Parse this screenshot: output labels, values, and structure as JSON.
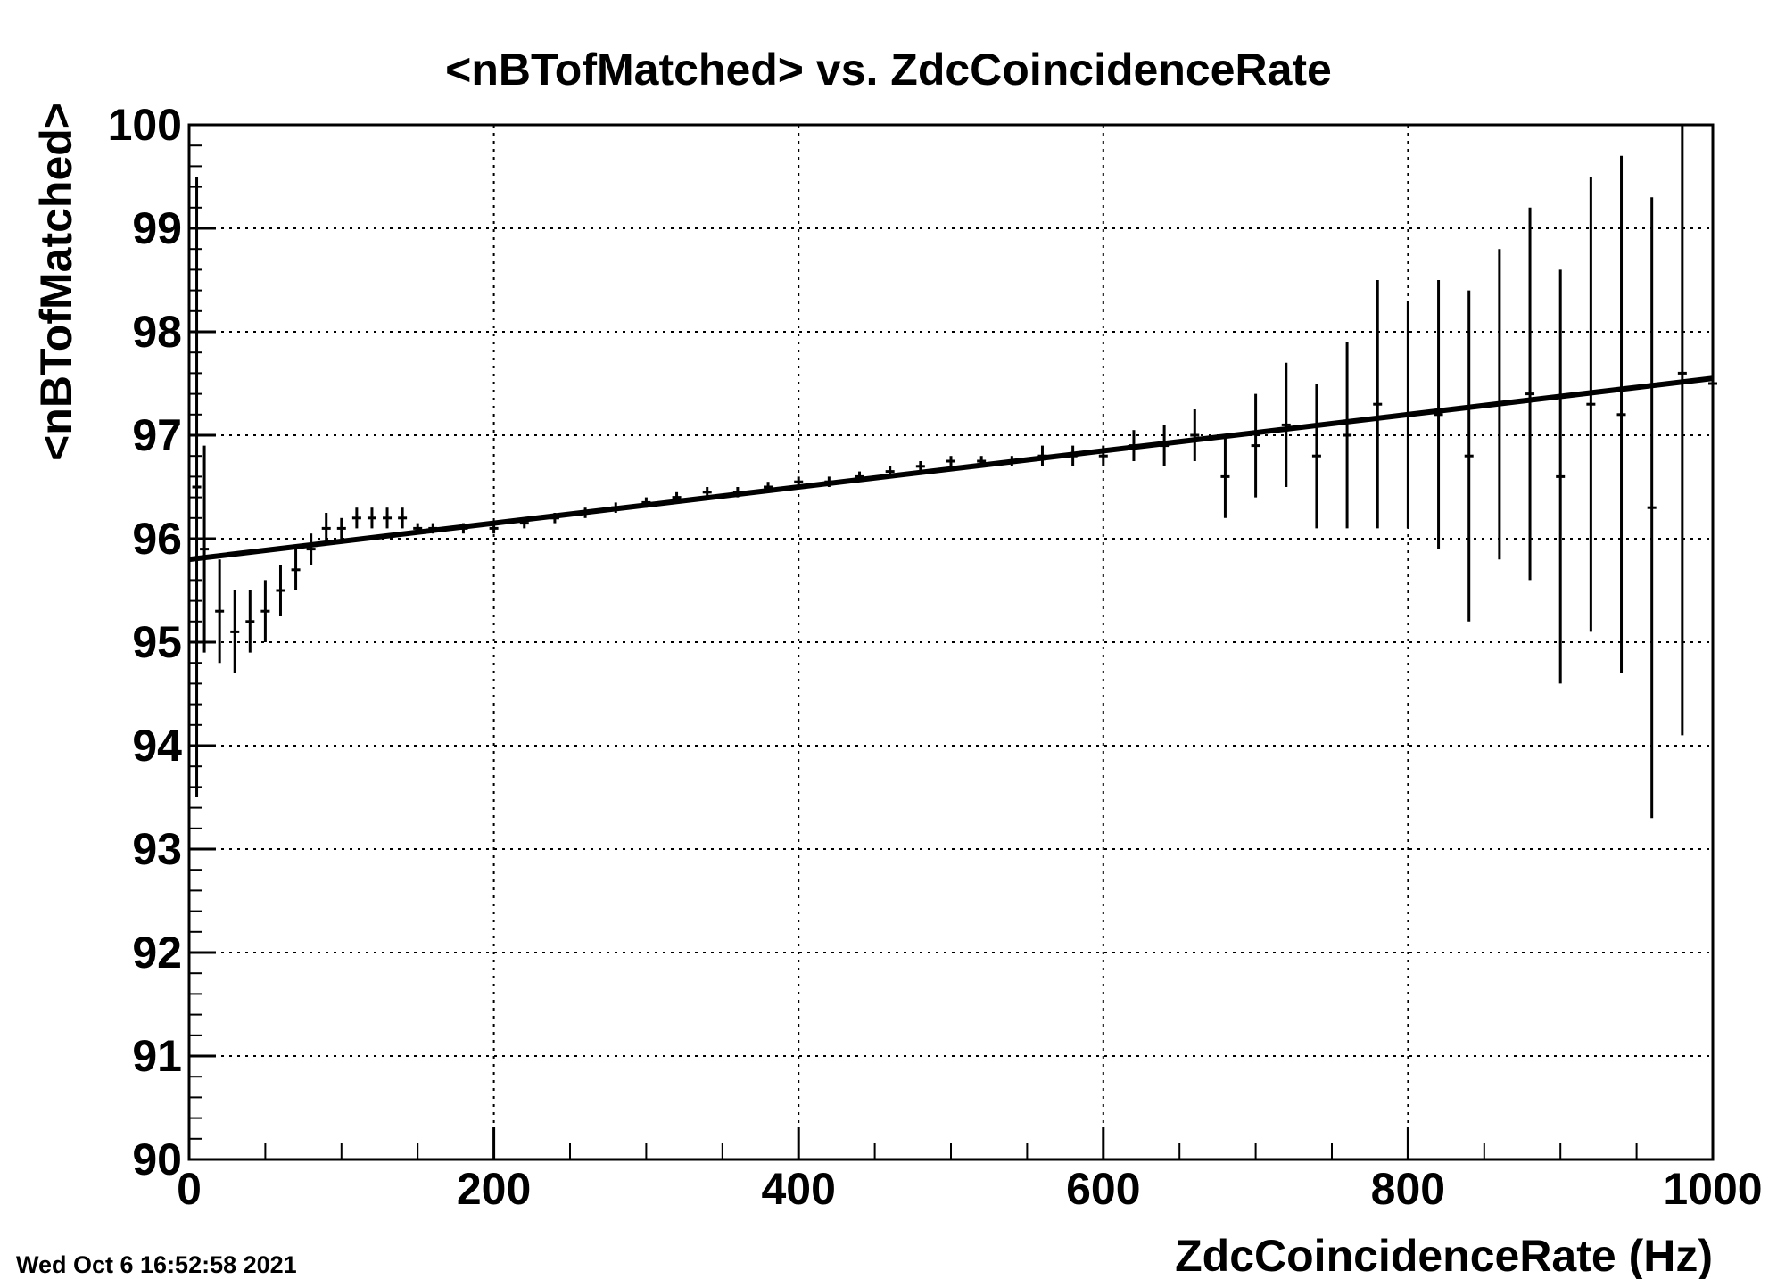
{
  "chart_data": {
    "type": "scatter",
    "title": "<nBTofMatched> vs. ZdcCoincidenceRate",
    "xlabel": "ZdcCoincidenceRate (Hz)",
    "ylabel": "<nBTofMatched>",
    "xlim": [
      0,
      1000
    ],
    "ylim": [
      90,
      100
    ],
    "x_ticks": [
      "0",
      "200",
      "400",
      "600",
      "800",
      "1000"
    ],
    "y_ticks": [
      "90",
      "91",
      "92",
      "93",
      "94",
      "95",
      "96",
      "97",
      "98",
      "99",
      "100"
    ],
    "grid": true,
    "legend": "none",
    "fit": {
      "name": "",
      "type": "linear",
      "x": [
        0,
        1000
      ],
      "y": [
        95.8,
        97.55
      ]
    },
    "profile": {
      "x": [
        5,
        10,
        20,
        30,
        40,
        50,
        60,
        70,
        80,
        90,
        100,
        110,
        120,
        130,
        140,
        150,
        160,
        180,
        200,
        220,
        240,
        260,
        280,
        300,
        320,
        340,
        360,
        380,
        400,
        420,
        440,
        460,
        480,
        500,
        520,
        540,
        560,
        580,
        600,
        620,
        640,
        660,
        680,
        700,
        720,
        740,
        760,
        780,
        800,
        820,
        840,
        860,
        880,
        900,
        920,
        940,
        960,
        980,
        1000
      ],
      "y": [
        96.5,
        95.9,
        95.3,
        95.1,
        95.2,
        95.3,
        95.5,
        95.7,
        95.9,
        96.1,
        96.1,
        96.2,
        96.2,
        96.2,
        96.2,
        96.1,
        96.1,
        96.1,
        96.1,
        96.15,
        96.2,
        96.25,
        96.3,
        96.35,
        96.4,
        96.45,
        96.45,
        96.5,
        96.55,
        96.55,
        96.6,
        96.65,
        96.7,
        96.75,
        96.75,
        96.75,
        96.8,
        96.8,
        96.8,
        96.9,
        96.9,
        97.0,
        96.6,
        96.9,
        97.1,
        96.8,
        97.0,
        97.3,
        97.2,
        97.2,
        96.8,
        97.3,
        97.4,
        96.6,
        97.3,
        97.2,
        96.3,
        97.6,
        97.5
      ],
      "y_err": [
        3.0,
        1.0,
        0.5,
        0.4,
        0.3,
        0.3,
        0.25,
        0.2,
        0.15,
        0.15,
        0.1,
        0.1,
        0.1,
        0.1,
        0.1,
        0.05,
        0.05,
        0.05,
        0.05,
        0.05,
        0.05,
        0.05,
        0.05,
        0.05,
        0.05,
        0.05,
        0.05,
        0.05,
        0.05,
        0.05,
        0.05,
        0.05,
        0.05,
        0.05,
        0.05,
        0.05,
        0.1,
        0.1,
        0.1,
        0.15,
        0.2,
        0.25,
        0.4,
        0.5,
        0.6,
        0.7,
        0.9,
        1.2,
        1.1,
        1.3,
        1.6,
        1.5,
        1.8,
        2.0,
        2.2,
        2.5,
        3.0,
        3.5,
        2.0
      ]
    }
  },
  "footer": {
    "timestamp": "Wed Oct  6 16:52:58 2021"
  }
}
